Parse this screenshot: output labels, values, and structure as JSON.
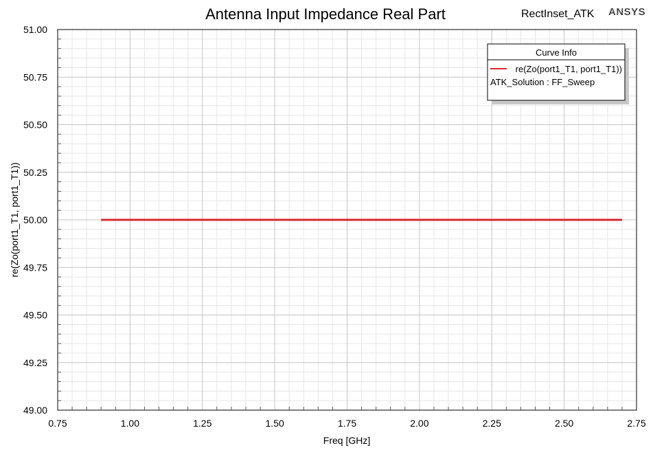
{
  "header": {
    "design_name": "RectInset_ATK",
    "brand": "ANSYS"
  },
  "legend": {
    "title": "Curve Info",
    "entries": [
      {
        "label": "re(Zo(port1_T1, port1_T1))",
        "color": "#d6282e"
      }
    ],
    "solution_label": "ATK_Solution : FF_Sweep"
  },
  "chart_data": {
    "type": "line",
    "title": "Antenna Input Impedance Real Part",
    "xlabel": "Freq [GHz]",
    "ylabel": "re(Zo(port1_T1, port1_T1))",
    "xlim": [
      0.75,
      2.75
    ],
    "ylim": [
      49.0,
      51.0
    ],
    "x_ticks": [
      "0.75",
      "1.00",
      "1.25",
      "1.50",
      "1.75",
      "2.00",
      "2.25",
      "2.50",
      "2.75"
    ],
    "y_ticks": [
      "51.00",
      "50.75",
      "50.50",
      "50.25",
      "50.00",
      "49.75",
      "49.50",
      "49.25",
      "49.00"
    ],
    "grid": true,
    "legend_position": "top-right",
    "series": [
      {
        "name": "re(Zo(port1_T1, port1_T1))",
        "color": "#d6282e",
        "x": [
          0.9,
          2.7
        ],
        "y": [
          50.0,
          50.0
        ]
      }
    ]
  }
}
